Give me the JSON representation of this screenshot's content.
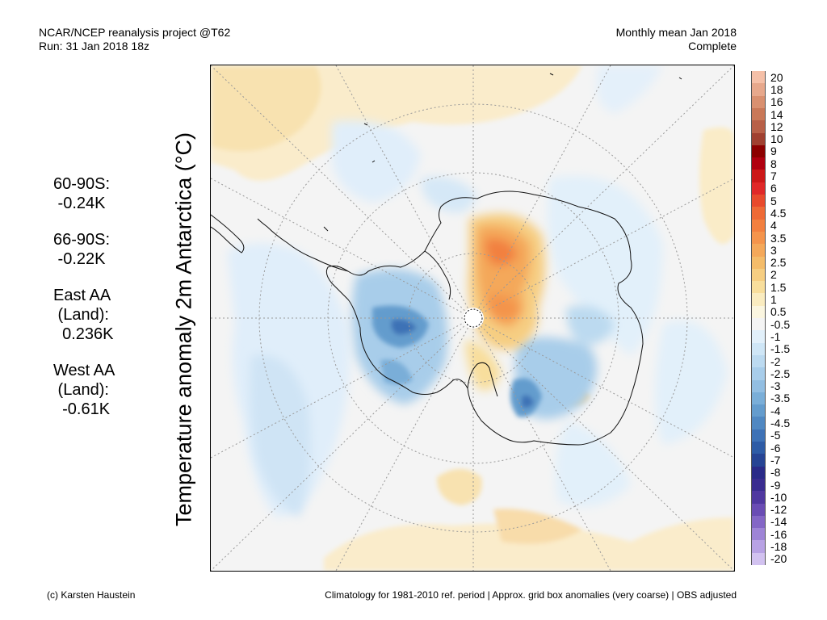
{
  "header": {
    "line1": "NCAR/NCEP reanalysis project @T62",
    "line2": "Run: 31 Jan 2018 18z",
    "right1": "Monthly mean Jan 2018",
    "right2": "Complete"
  },
  "map": {
    "ylabel": "Temperature anomaly 2m Antarctica (°C)"
  },
  "stats": [
    {
      "label": "60-90S:",
      "value": " -0.24K"
    },
    {
      "label": "66-90S:",
      "value": " -0.22K"
    },
    {
      "label": "East AA",
      "value": " (Land):",
      "extra": "  0.236K"
    },
    {
      "label": "West AA",
      "value": " (Land):",
      "extra": "  -0.61K"
    }
  ],
  "colorbar": {
    "labels": [
      "20",
      "18",
      "16",
      "14",
      "12",
      "10",
      "9",
      "8",
      "7",
      "6",
      "5",
      "4.5",
      "4",
      "3.5",
      "3",
      "2.5",
      "2",
      "1.5",
      "1",
      "0.5",
      "-0.5",
      "-1",
      "-1.5",
      "-2",
      "-2.5",
      "-3",
      "-3.5",
      "-4",
      "-4.5",
      "-5",
      "-6",
      "-7",
      "-8",
      "-9",
      "-10",
      "-12",
      "-14",
      "-16",
      "-18",
      "-20"
    ],
    "colors": [
      "#f5c0a8",
      "#e7a88c",
      "#d99070",
      "#c97858",
      "#b86048",
      "#a04030",
      "#8c0000",
      "#b00010",
      "#cc1818",
      "#e02828",
      "#e84a2c",
      "#ee6a36",
      "#f28040",
      "#f4944c",
      "#f4a85a",
      "#f4bc6a",
      "#f6ce82",
      "#f8de9c",
      "#faecc0",
      "#fbf6e0",
      "#f4f4f4",
      "#e2f0fa",
      "#cfe6f6",
      "#bcdaf0",
      "#a8cdea",
      "#92bee2",
      "#7aaed8",
      "#649ccd",
      "#5088c2",
      "#3e72b6",
      "#2e5ca6",
      "#264494",
      "#2a2a88",
      "#3a2c90",
      "#5038a0",
      "#6a4cb4",
      "#8466c6",
      "#9e84d6",
      "#b8a2e4",
      "#d2c2f0"
    ]
  },
  "footer": {
    "left": "(c) Karsten Haustein",
    "right": "Climatology for 1981-2010 ref. period | Approx. grid box anomalies (very coarse) | OBS adjusted"
  }
}
